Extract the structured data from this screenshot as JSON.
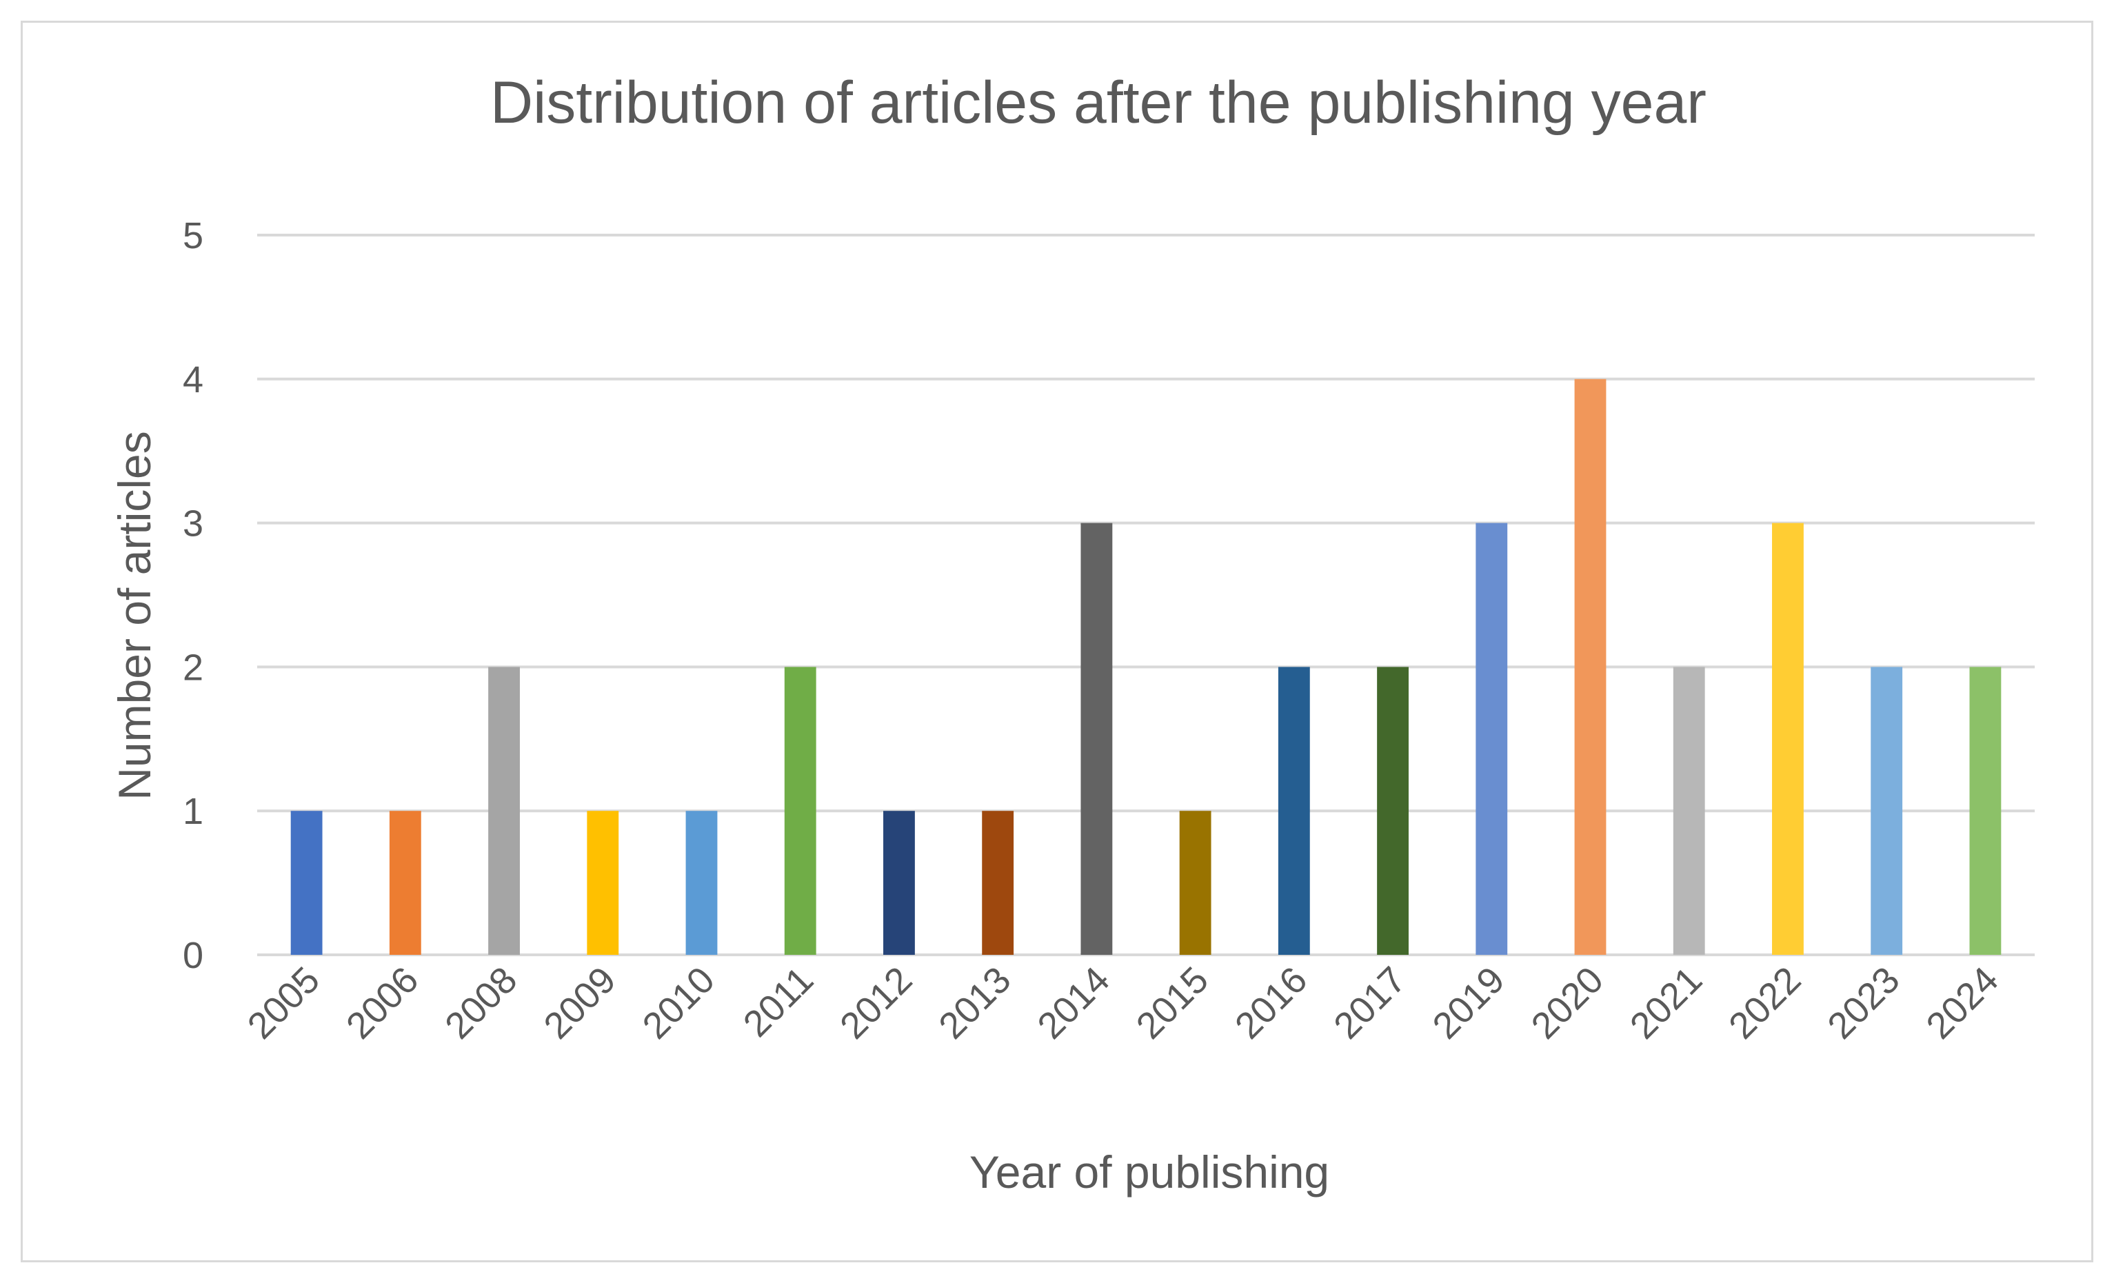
{
  "chart_data": {
    "type": "bar",
    "title": "Distribution of articles after the publishing year",
    "xlabel": "Year of publishing",
    "ylabel": "Number of articles",
    "categories": [
      "2005",
      "2006",
      "2008",
      "2009",
      "2010",
      "2011",
      "2012",
      "2013",
      "2014",
      "2015",
      "2016",
      "2017",
      "2019",
      "2020",
      "2021",
      "2022",
      "2023",
      "2024"
    ],
    "values": [
      1,
      1,
      2,
      1,
      1,
      2,
      1,
      1,
      3,
      1,
      2,
      2,
      3,
      4,
      2,
      3,
      2,
      2
    ],
    "colors": [
      "#4472c4",
      "#ed7d31",
      "#a5a5a5",
      "#ffc000",
      "#5b9bd5",
      "#70ad47",
      "#264478",
      "#9e480e",
      "#636363",
      "#997300",
      "#255e91",
      "#43682b",
      "#698ed0",
      "#f1975a",
      "#b7b7b7",
      "#ffcd33",
      "#7cafdd",
      "#8cc168"
    ],
    "ylim": [
      0,
      5
    ],
    "yticks": [
      "0",
      "1",
      "2",
      "3",
      "4",
      "5"
    ],
    "grid": true,
    "legend": "none"
  }
}
